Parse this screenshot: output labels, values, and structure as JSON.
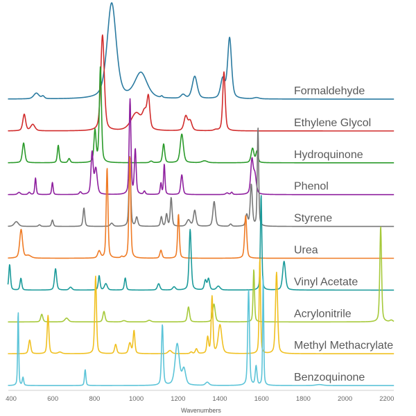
{
  "chart_data": {
    "type": "line",
    "title": "",
    "xlabel": "Wavenumbers",
    "ylabel": "",
    "xlim": [
      385,
      2235
    ],
    "xticks": [
      400,
      600,
      800,
      1000,
      1200,
      1400,
      1600,
      1800,
      2000,
      2200
    ],
    "grid": false,
    "legend": "inline labels at right of each trace",
    "layout": "stacked offset spectra, one offset unit between traces",
    "peak_format": "[wavenumber, height, half-width]",
    "series": [
      {
        "name": "Formaldehyde",
        "color": "#2a7aa0",
        "peaks": [
          [
            521,
            0.18,
            15
          ],
          [
            553,
            0.08,
            8
          ],
          [
            882,
            3.0,
            26
          ],
          [
            1022,
            0.8,
            35
          ],
          [
            1122,
            0.05,
            5
          ],
          [
            1224,
            0.12,
            12
          ],
          [
            1280,
            0.7,
            14
          ],
          [
            1414,
            0.6,
            12
          ],
          [
            1447,
            1.9,
            11
          ],
          [
            1576,
            0.04,
            15
          ]
        ]
      },
      {
        "name": "Ethylene Glycol",
        "color": "#d12b2b",
        "peaks": [
          [
            463,
            0.52,
            8
          ],
          [
            504,
            0.2,
            12
          ],
          [
            838,
            3.0,
            10
          ],
          [
            1000,
            0.55,
            30
          ],
          [
            1040,
            0.45,
            12
          ],
          [
            1058,
            0.95,
            8
          ],
          [
            1237,
            0.45,
            10
          ],
          [
            1258,
            0.3,
            10
          ],
          [
            1380,
            0.03,
            10
          ],
          [
            1420,
            1.85,
            7
          ]
        ]
      },
      {
        "name": "Hydroquinone",
        "color": "#2a9a2a",
        "peaks": [
          [
            460,
            0.62,
            7
          ],
          [
            626,
            0.55,
            5
          ],
          [
            678,
            0.13,
            6
          ],
          [
            802,
            1.0,
            6
          ],
          [
            828,
            3.0,
            6
          ],
          [
            1071,
            0.05,
            8
          ],
          [
            1131,
            0.59,
            6
          ],
          [
            1218,
            0.9,
            9
          ],
          [
            1327,
            0.06,
            15
          ],
          [
            1557,
            0.45,
            8
          ],
          [
            1578,
            0.35,
            6
          ]
        ]
      },
      {
        "name": "Phenol",
        "color": "#8e1f9e",
        "peaks": [
          [
            438,
            0.07,
            8
          ],
          [
            487,
            0.07,
            6
          ],
          [
            517,
            0.52,
            4
          ],
          [
            598,
            0.38,
            4
          ],
          [
            732,
            0.08,
            6
          ],
          [
            788,
            1.3,
            6
          ],
          [
            806,
            0.8,
            8
          ],
          [
            970,
            2.98,
            5
          ],
          [
            995,
            1.4,
            5
          ],
          [
            1039,
            0.1,
            5
          ],
          [
            1118,
            0.35,
            4
          ],
          [
            1134,
            0.95,
            4
          ],
          [
            1218,
            0.62,
            6
          ],
          [
            1435,
            0.05,
            8
          ],
          [
            1457,
            0.07,
            5
          ],
          [
            1554,
            1.05,
            7
          ],
          [
            1568,
            0.6,
            8
          ]
        ]
      },
      {
        "name": "Styrene",
        "color": "#777777",
        "peaks": [
          [
            425,
            0.15,
            12
          ],
          [
            536,
            0.05,
            6
          ],
          [
            598,
            0.2,
            5
          ],
          [
            749,
            0.58,
            5
          ],
          [
            882,
            0.1,
            8
          ],
          [
            969,
            2.2,
            5
          ],
          [
            1002,
            0.28,
            6
          ],
          [
            1120,
            0.3,
            5
          ],
          [
            1145,
            0.38,
            5
          ],
          [
            1167,
            0.9,
            5
          ],
          [
            1250,
            0.2,
            10
          ],
          [
            1280,
            0.5,
            7
          ],
          [
            1373,
            0.78,
            7
          ],
          [
            1452,
            0.07,
            6
          ],
          [
            1529,
            0.35,
            6
          ],
          [
            1551,
            1.3,
            6
          ],
          [
            1583,
            3.1,
            4
          ]
        ]
      },
      {
        "name": "Urea",
        "color": "#ef7b25",
        "peaks": [
          [
            448,
            0.9,
            8
          ],
          [
            483,
            0.08,
            15
          ],
          [
            822,
            0.22,
            8
          ],
          [
            860,
            2.83,
            5
          ],
          [
            930,
            0.04,
            5
          ],
          [
            969,
            3.2,
            5
          ],
          [
            1118,
            0.25,
            6
          ],
          [
            1202,
            1.38,
            5
          ],
          [
            1524,
            1.34,
            6
          ]
        ]
      },
      {
        "name": "Vinyl Acetate",
        "color": "#1a9a9a",
        "peaks": [
          [
            393,
            0.8,
            5
          ],
          [
            447,
            0.37,
            5
          ],
          [
            613,
            0.67,
            6
          ],
          [
            685,
            0.09,
            8
          ],
          [
            822,
            0.45,
            5
          ],
          [
            854,
            0.2,
            8
          ],
          [
            947,
            0.38,
            5
          ],
          [
            1107,
            0.2,
            7
          ],
          [
            1181,
            0.1,
            8
          ],
          [
            1258,
            1.9,
            6
          ],
          [
            1331,
            0.3,
            6
          ],
          [
            1346,
            0.35,
            6
          ],
          [
            1393,
            0.12,
            10
          ],
          [
            1598,
            3.0,
            4
          ],
          [
            1708,
            0.9,
            8
          ]
        ]
      },
      {
        "name": "Acrylonitrile",
        "color": "#a6c93a",
        "peaks": [
          [
            547,
            0.24,
            6
          ],
          [
            666,
            0.12,
            10
          ],
          [
            845,
            0.33,
            6
          ],
          [
            941,
            0.04,
            10
          ],
          [
            1062,
            0.05,
            10
          ],
          [
            1250,
            0.47,
            6
          ],
          [
            1372,
            0.56,
            7
          ],
          [
            1563,
            1.65,
            4
          ],
          [
            2171,
            3.0,
            5
          ],
          [
            2222,
            0.05,
            8
          ]
        ]
      },
      {
        "name": "Methyl Methacrylate",
        "color": "#f0c020",
        "peaks": [
          [
            489,
            0.43,
            6
          ],
          [
            577,
            1.2,
            5
          ],
          [
            634,
            0.05,
            10
          ],
          [
            805,
            2.43,
            5
          ],
          [
            901,
            0.29,
            6
          ],
          [
            969,
            0.33,
            7
          ],
          [
            989,
            0.72,
            5
          ],
          [
            1161,
            0.1,
            10
          ],
          [
            1263,
            0.05,
            6
          ],
          [
            1288,
            0.15,
            6
          ],
          [
            1342,
            0.5,
            5
          ],
          [
            1363,
            1.78,
            5
          ],
          [
            1401,
            0.9,
            10
          ],
          [
            1592,
            3.0,
            4
          ],
          [
            1672,
            2.55,
            6
          ]
        ]
      },
      {
        "name": "Benzoquinone",
        "color": "#5cc4d8",
        "peaks": [
          [
            434,
            2.33,
            3
          ],
          [
            457,
            0.25,
            4
          ],
          [
            755,
            0.5,
            4
          ],
          [
            1125,
            1.9,
            5
          ],
          [
            1196,
            1.3,
            12
          ],
          [
            1228,
            0.5,
            10
          ],
          [
            1340,
            0.1,
            10
          ],
          [
            1538,
            3.0,
            5
          ],
          [
            1574,
            0.6,
            5
          ],
          [
            1608,
            3.5,
            3
          ],
          [
            1877,
            0.03,
            20
          ]
        ]
      }
    ]
  }
}
